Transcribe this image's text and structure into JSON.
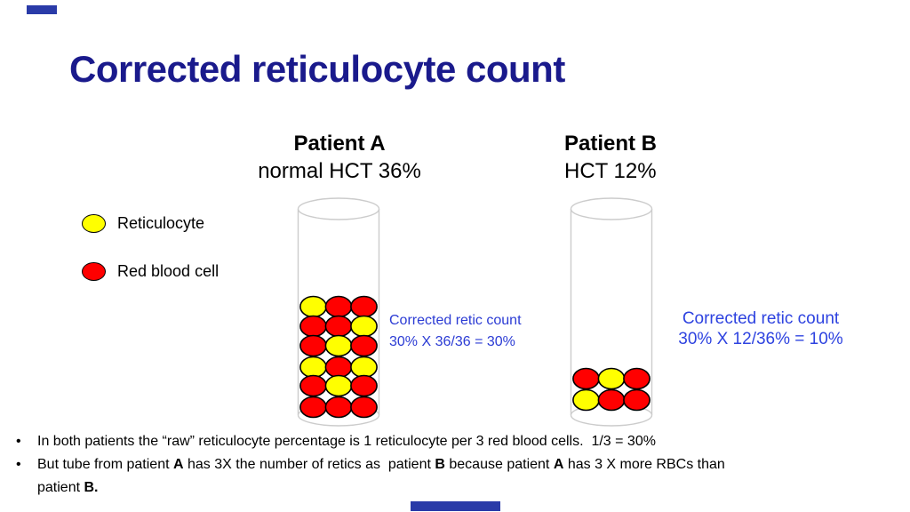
{
  "slide": {
    "title": "Corrected reticulocyte count",
    "title_color": "#1A1A8C",
    "accent_color": "#2A3BA8"
  },
  "patient_a": {
    "name": "Patient A",
    "subtitle": "normal HCT 36%",
    "annotation_line1": "Corrected retic count",
    "annotation_line2": "30% X 36/36  = 30%",
    "tube_rows": [
      [
        "Y",
        "R",
        "R"
      ],
      [
        "R",
        "R",
        "Y"
      ],
      [
        "R",
        "Y",
        "R"
      ],
      [
        "Y",
        "R",
        "Y"
      ],
      [
        "R",
        "Y",
        "R"
      ],
      [
        "R",
        "R",
        "R"
      ]
    ]
  },
  "patient_b": {
    "name": "Patient B",
    "subtitle": "HCT 12%",
    "annotation_line1": "Corrected retic count",
    "annotation_line2": "30% X 12/36% = 10%",
    "tube_rows": [
      [
        "R",
        "Y",
        "R"
      ],
      [
        "Y",
        "R",
        "R"
      ]
    ]
  },
  "legend": {
    "items": [
      {
        "name": "reticulocyte",
        "label": "Reticulocyte",
        "color": "#FFFF00"
      },
      {
        "name": "red-blood-cell",
        "label": "Red blood cell",
        "color": "#FF0000"
      }
    ]
  },
  "colors": {
    "reticulocyte": "#FFFF00",
    "red_blood_cell": "#FF0000",
    "cell_outline": "#000000",
    "tube_outline": "#CCCCCC",
    "annotation_blue_a": "#2B3BD4",
    "annotation_blue_b": "#2E43E0"
  },
  "bullets": [
    [
      {
        "t": "In both patients the “raw” reticulocyte percentage is 1 reticulocyte per 3 red blood cells.  1/3 = 30%"
      }
    ],
    [
      {
        "t": "But tube from patient "
      },
      {
        "t": "A",
        "b": true
      },
      {
        "t": " has 3X the number of retics as  patient "
      },
      {
        "t": "B",
        "b": true
      },
      {
        "t": " because patient "
      },
      {
        "t": "A",
        "b": true
      },
      {
        "t": " has 3 X more RBCs than"
      },
      {
        "br": true
      },
      {
        "t": "patient "
      },
      {
        "t": "B.",
        "b": true
      }
    ]
  ]
}
